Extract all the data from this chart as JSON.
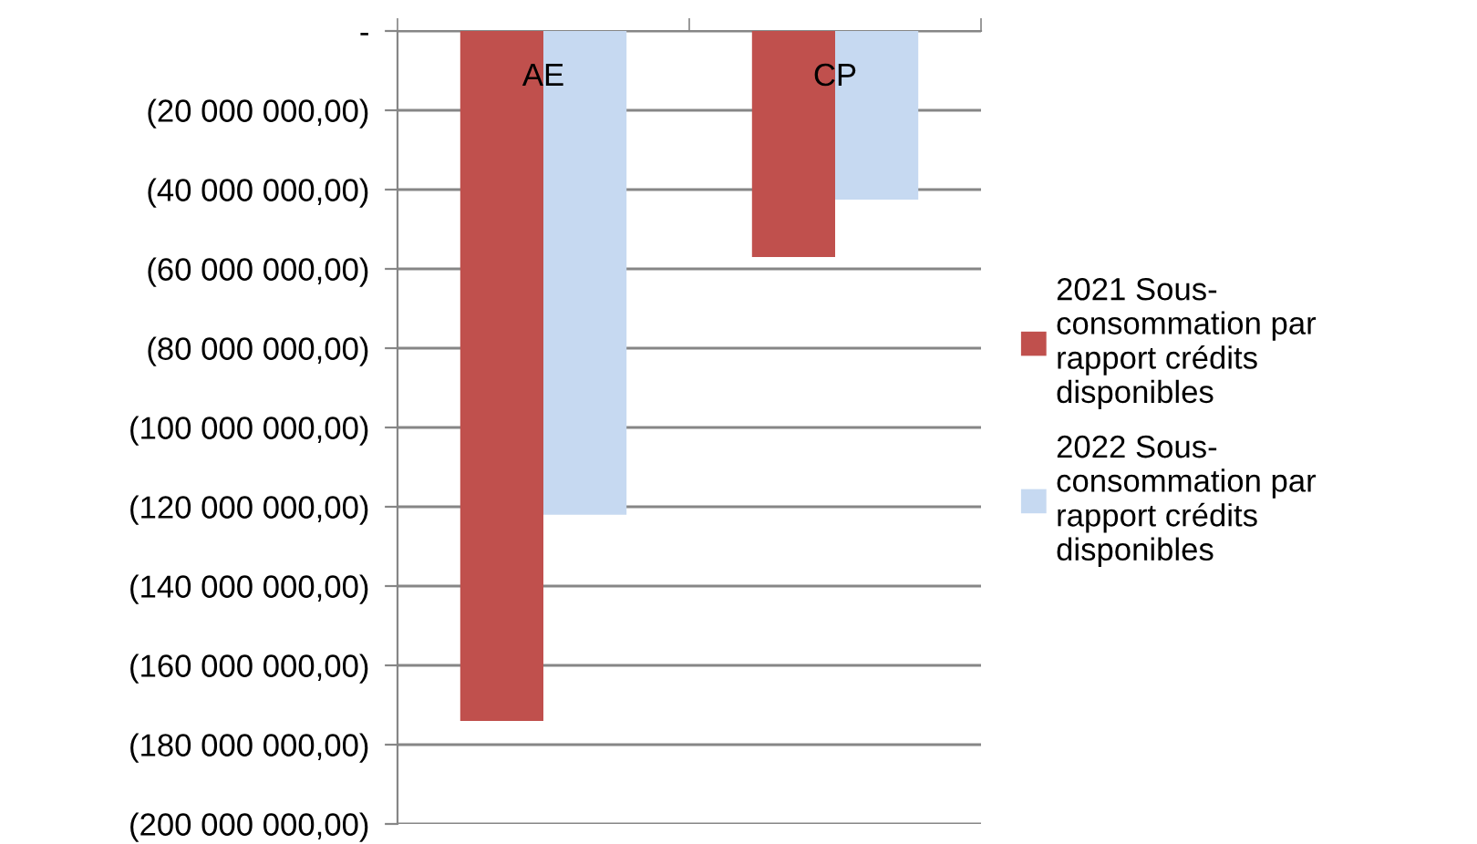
{
  "chart_data": {
    "type": "bar",
    "categories": [
      "AE",
      "CP"
    ],
    "series": [
      {
        "name": "2021 Sous-consommation par rapport crédits disponibles",
        "color": "#c0504d",
        "values": [
          -174000000,
          -57000000
        ]
      },
      {
        "name": "2022 Sous-consommation par rapport crédits disponibles",
        "color": "#c6d9f1",
        "values": [
          -122000000,
          -42500000
        ]
      }
    ],
    "ylim": [
      -200000000,
      0
    ],
    "yticks": [
      {
        "value": 0,
        "label": "-"
      },
      {
        "value": -20000000,
        "label": "(20 000 000,00)"
      },
      {
        "value": -40000000,
        "label": "(40 000 000,00)"
      },
      {
        "value": -60000000,
        "label": "(60 000 000,00)"
      },
      {
        "value": -80000000,
        "label": "(80 000 000,00)"
      },
      {
        "value": -100000000,
        "label": "(100 000 000,00)"
      },
      {
        "value": -120000000,
        "label": "(120 000 000,00)"
      },
      {
        "value": -140000000,
        "label": "(140 000 000,00)"
      },
      {
        "value": -160000000,
        "label": "(160 000 000,00)"
      },
      {
        "value": -180000000,
        "label": "(180 000 000,00)"
      },
      {
        "value": -200000000,
        "label": "(200 000 000,00)"
      }
    ],
    "grid": "y",
    "legend": "right"
  }
}
